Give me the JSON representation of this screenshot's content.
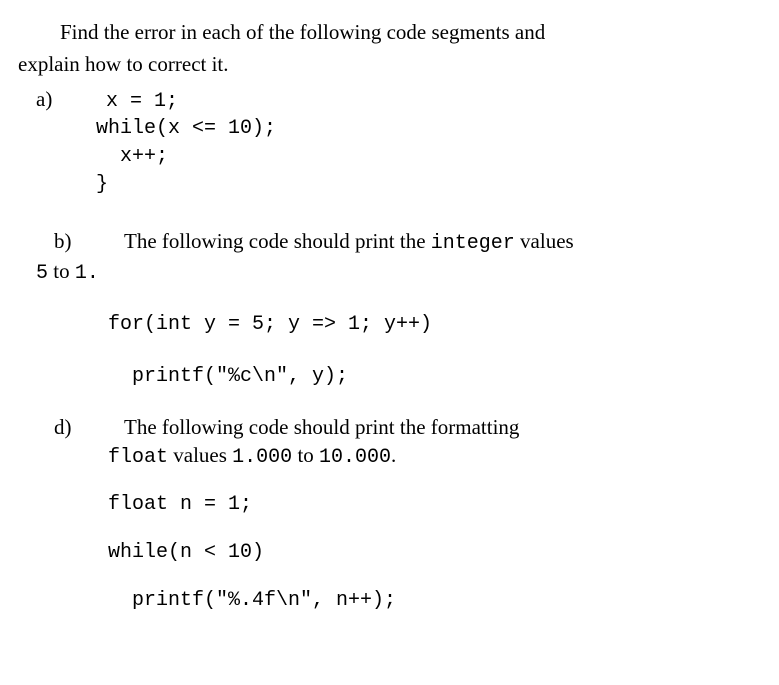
{
  "intro": {
    "line1": "Find the error in each of the following code segments and",
    "line2": "explain how to correct it."
  },
  "partA": {
    "label": "a)",
    "code_line1": "x = 1;",
    "code_line2": "while(x <= 10);",
    "code_line3": "  x++;",
    "code_line4": "}"
  },
  "partB": {
    "label": "b)",
    "desc_line1_before": "The following code should print the ",
    "desc_line1_mono": "integer",
    "desc_line1_after": " values",
    "desc_line2_before": "5",
    "desc_line2_mid": " to ",
    "desc_line2_after": "1.",
    "code_line1": "for(int y = 5; y => 1; y++)",
    "code_line2": "  printf(\"%c\\n\", y);"
  },
  "partD": {
    "label": "d)",
    "desc_line1": "The following code should print the formatting",
    "desc_line2_mono1": "float",
    "desc_line2_mid1": " values ",
    "desc_line2_mono2": "1.000",
    "desc_line2_mid2": " to ",
    "desc_line2_mono3": "10.000",
    "desc_line2_end": ".",
    "code_line1": "float n = 1;",
    "code_line2": "while(n < 10)",
    "code_line3": "  printf(\"%.4f\\n\", n++);"
  }
}
